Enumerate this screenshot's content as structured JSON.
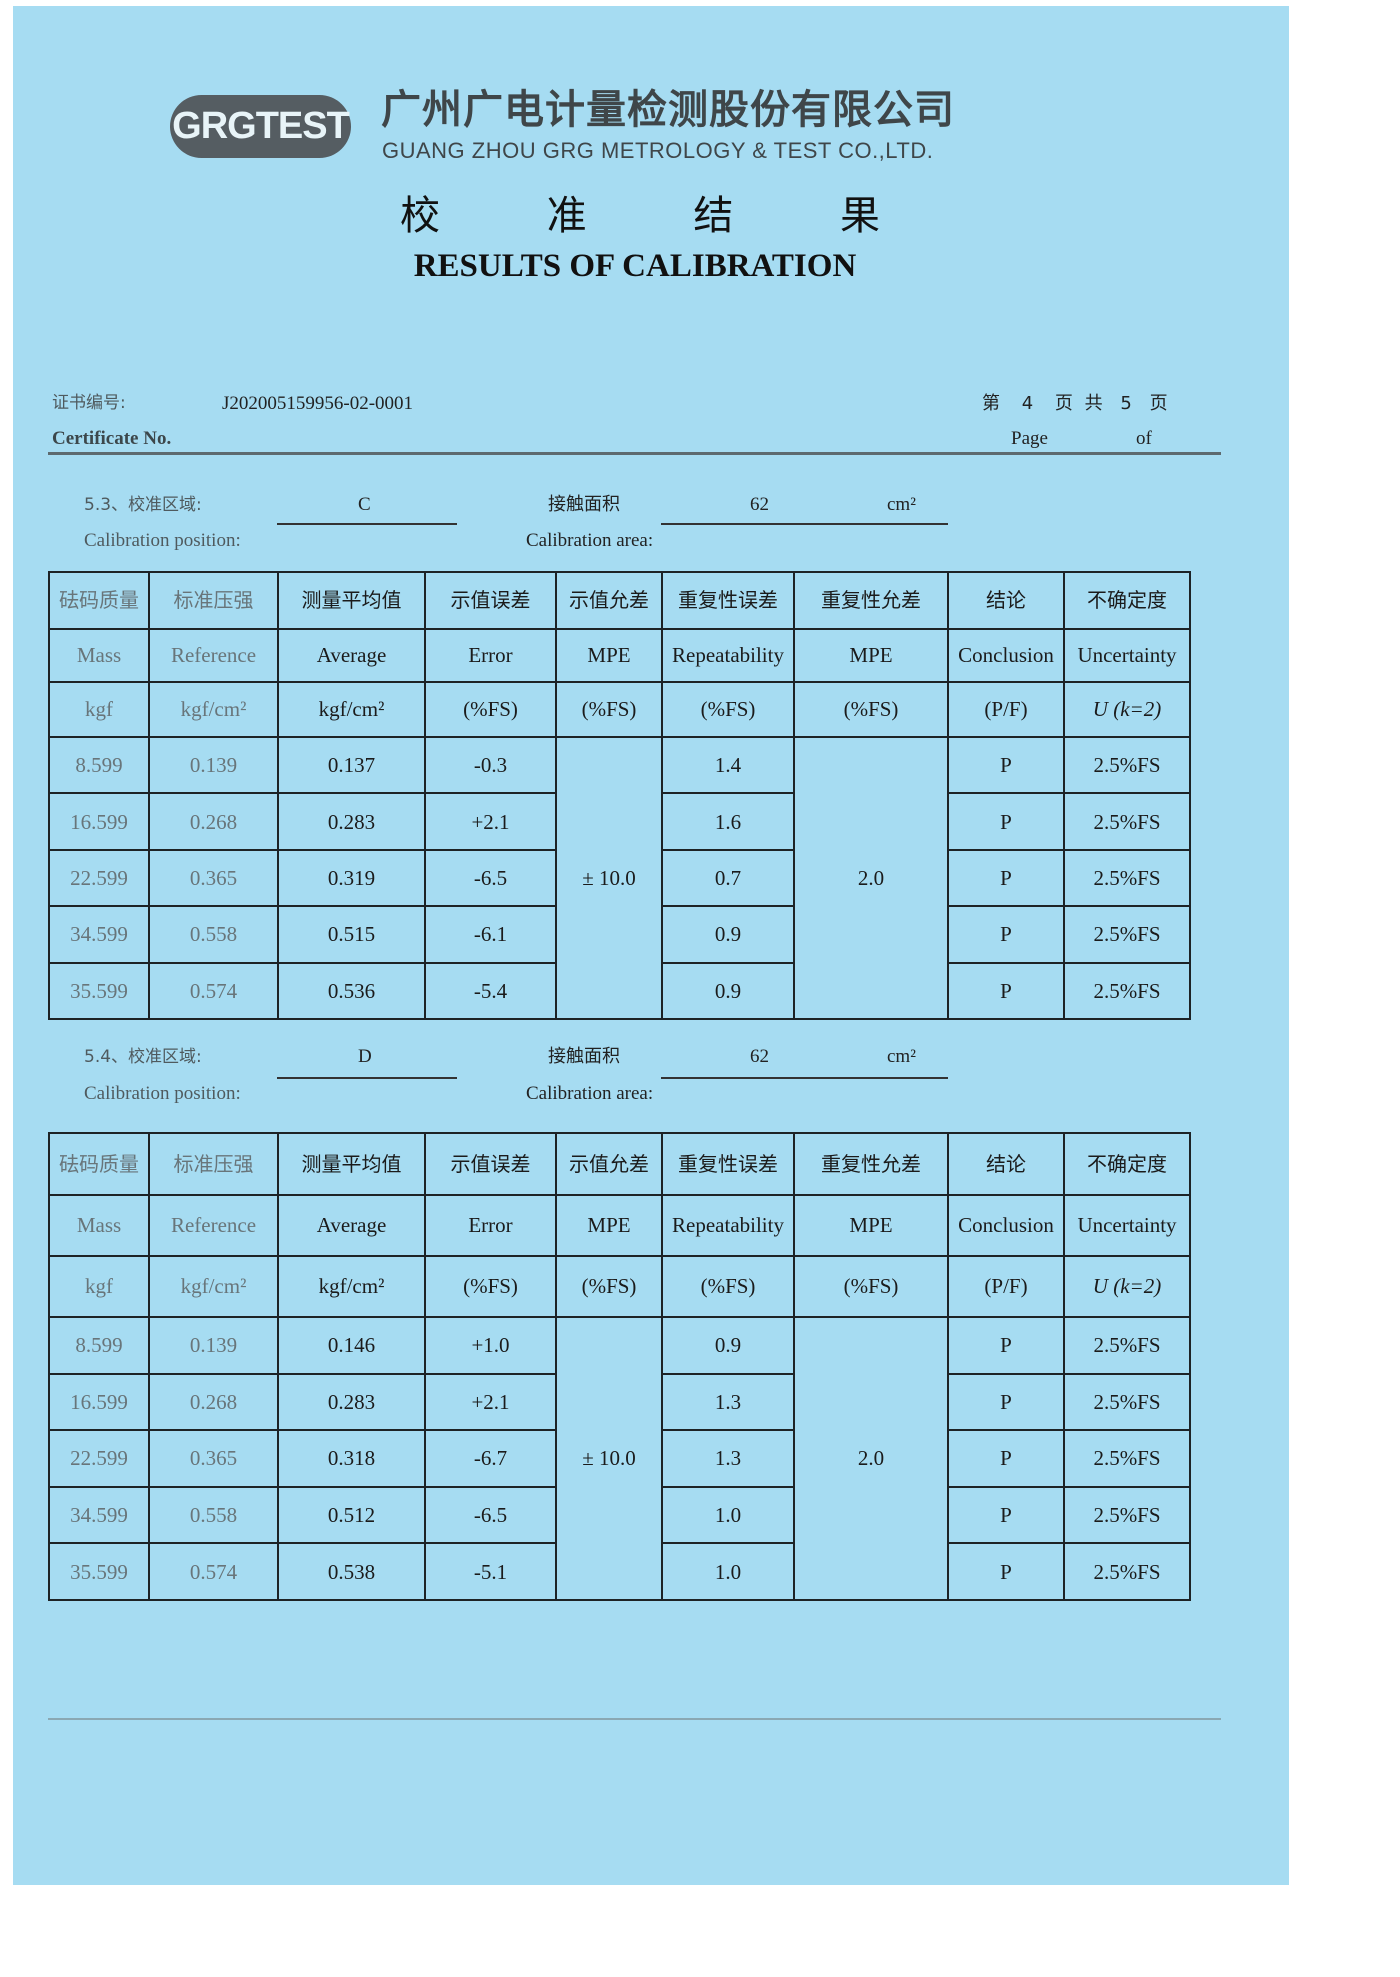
{
  "header": {
    "logo_text": "GRGTEST",
    "company_cn": "广州广电计量检测股份有限公司",
    "company_en": "GUANG  ZHOU GRG METROLOGY & TEST CO.,LTD.",
    "title_cn": [
      "校",
      "准",
      "结",
      "果"
    ],
    "title_en": "RESULTS OF CALIBRATION"
  },
  "certificate": {
    "label_cn": "证书编号:",
    "label_en": "Certificate No.",
    "number": "J202005159956-02-0001",
    "page_cn_di": "第",
    "page_current": "4",
    "page_cn_mid": "页 共",
    "page_total": "5",
    "page_cn_end": "页",
    "page_en": "Page",
    "of_en": "of"
  },
  "columns": {
    "cn": [
      "砝码质量",
      "标准压强",
      "测量平均值",
      "示值误差",
      "示值允差",
      "重复性误差",
      "重复性允差",
      "结论",
      "不确定度"
    ],
    "en": [
      "Mass",
      "Reference",
      "Average",
      "Error",
      "MPE",
      "Repeatability",
      "MPE",
      "Conclusion",
      "Uncertainty"
    ],
    "units": [
      "kgf",
      "kgf/cm²",
      "kgf/cm²",
      "(%FS)",
      "(%FS)",
      "(%FS)",
      "(%FS)",
      "(P/F)",
      "U (k=2)"
    ]
  },
  "sections": [
    {
      "number_label": "5.3、校准区域:",
      "position_en": "Calibration position:",
      "position": "C",
      "area_cn": "接触面积",
      "area_en": "Calibration area:",
      "area_value": "62",
      "area_unit": "cm²",
      "mpe_error": "± 10.0",
      "mpe_repeat": "2.0",
      "rows": [
        {
          "mass": "8.599",
          "reference": "0.139",
          "average": "0.137",
          "error": "-0.3",
          "repeatability": "1.4",
          "conclusion": "P",
          "uncertainty": "2.5%FS"
        },
        {
          "mass": "16.599",
          "reference": "0.268",
          "average": "0.283",
          "error": "+2.1",
          "repeatability": "1.6",
          "conclusion": "P",
          "uncertainty": "2.5%FS"
        },
        {
          "mass": "22.599",
          "reference": "0.365",
          "average": "0.319",
          "error": "-6.5",
          "repeatability": "0.7",
          "conclusion": "P",
          "uncertainty": "2.5%FS"
        },
        {
          "mass": "34.599",
          "reference": "0.558",
          "average": "0.515",
          "error": "-6.1",
          "repeatability": "0.9",
          "conclusion": "P",
          "uncertainty": "2.5%FS"
        },
        {
          "mass": "35.599",
          "reference": "0.574",
          "average": "0.536",
          "error": "-5.4",
          "repeatability": "0.9",
          "conclusion": "P",
          "uncertainty": "2.5%FS"
        }
      ]
    },
    {
      "number_label": "5.4、校准区域:",
      "position_en": "Calibration position:",
      "position": "D",
      "area_cn": "接触面积",
      "area_en": "Calibration area:",
      "area_value": "62",
      "area_unit": "cm²",
      "mpe_error": "± 10.0",
      "mpe_repeat": "2.0",
      "rows": [
        {
          "mass": "8.599",
          "reference": "0.139",
          "average": "0.146",
          "error": "+1.0",
          "repeatability": "0.9",
          "conclusion": "P",
          "uncertainty": "2.5%FS"
        },
        {
          "mass": "16.599",
          "reference": "0.268",
          "average": "0.283",
          "error": "+2.1",
          "repeatability": "1.3",
          "conclusion": "P",
          "uncertainty": "2.5%FS"
        },
        {
          "mass": "22.599",
          "reference": "0.365",
          "average": "0.318",
          "error": "-6.7",
          "repeatability": "1.3",
          "conclusion": "P",
          "uncertainty": "2.5%FS"
        },
        {
          "mass": "34.599",
          "reference": "0.558",
          "average": "0.512",
          "error": "-6.5",
          "repeatability": "1.0",
          "conclusion": "P",
          "uncertainty": "2.5%FS"
        },
        {
          "mass": "35.599",
          "reference": "0.574",
          "average": "0.538",
          "error": "-5.1",
          "repeatability": "1.0",
          "conclusion": "P",
          "uncertainty": "2.5%FS"
        }
      ]
    }
  ],
  "colors": {
    "paper": "#a6dcf2",
    "ink": "#1a1a1a",
    "logo_bg": "#555d62"
  }
}
